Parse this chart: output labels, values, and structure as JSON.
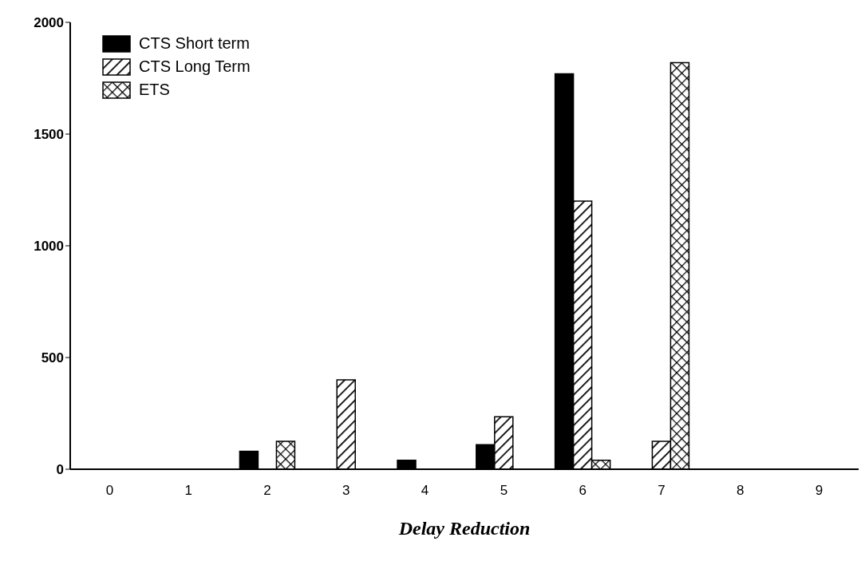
{
  "chart_data": {
    "type": "bar",
    "xlabel": "Delay Reduction",
    "categories": [
      "0",
      "1",
      "2",
      "3",
      "4",
      "5",
      "6",
      "7",
      "8",
      "9"
    ],
    "series": [
      {
        "name": "CTS Short term",
        "color": "#000000",
        "values": [
          0,
          0,
          80,
          0,
          40,
          110,
          1770,
          0,
          0,
          0
        ]
      },
      {
        "name": "CTS Long Term",
        "color": "#000000",
        "values": [
          0,
          0,
          0,
          400,
          0,
          235,
          1200,
          125,
          0,
          0
        ]
      },
      {
        "name": "ETS",
        "color": "#000000",
        "values": [
          0,
          0,
          125,
          0,
          0,
          0,
          40,
          1820,
          0,
          0
        ]
      }
    ],
    "ylim": [
      0,
      2000
    ],
    "yticks": [
      0,
      500,
      1000,
      1500,
      2000
    ],
    "grid": false,
    "legend": "top left"
  }
}
